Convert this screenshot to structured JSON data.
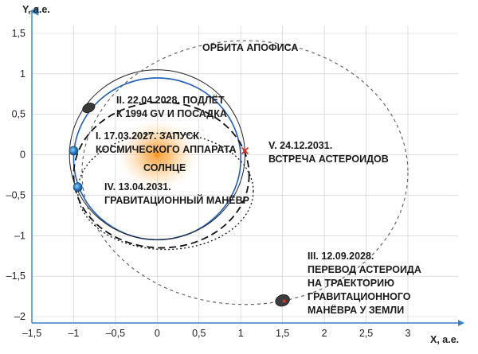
{
  "axes": {
    "x_label": "X, а.е.",
    "y_label": "Y, а.е.",
    "x_ticks": [
      "–1,5",
      "–1",
      "–0,5",
      "0",
      "0,5",
      "1",
      "1,5",
      "2",
      "2,5",
      "3"
    ],
    "y_ticks": [
      "1,5",
      "1",
      "0,5",
      "0",
      "–0,5",
      "–1",
      "–1,5",
      "–2"
    ]
  },
  "labels": {
    "apophis_orbit": "ОРБИТА АПОФИСА",
    "flyby": [
      "II. 22.04.2028. ПОДЛЁТ",
      "К 1994 GV И ПОСАДКА"
    ],
    "launch": [
      "I. 17.03.2027. ЗАПУСК",
      "КОСМИЧЕСКОГО АППАРАТА"
    ],
    "sun": "СОЛНЦЕ",
    "maneuver": [
      "IV. 13.04.2031.",
      "ГРАВИТАЦИОННЫЙ МАНЁВР"
    ],
    "meeting": [
      "V. 24.12.2031.",
      "ВСТРЕЧА АСТЕРОИДОВ"
    ],
    "transfer": [
      "III. 12.09.2028.",
      "ПЕРЕВОД АСТЕРОИДА",
      "НА ТРАЕКТОРИЮ",
      "ГРАВИТАЦИОННОГО",
      "МАНЁВРА У ЗЕМЛИ"
    ]
  },
  "colors": {
    "earth_orbit": "#1f5fb5",
    "axis": "#3a7fc0",
    "grid": "#c9c9c9",
    "sun": "#f59a2a",
    "meeting_marker": "#e03020"
  },
  "chart_data": {
    "type": "orbit-diagram",
    "xlim": [
      -1.5,
      3
    ],
    "ylim": [
      -2,
      1.5
    ],
    "x_tick_values": [
      -1.5,
      -1,
      -0.5,
      0,
      0.5,
      1,
      1.5,
      2,
      2.5,
      3
    ],
    "y_tick_values": [
      1.5,
      1,
      0.5,
      0,
      -0.5,
      -1,
      -1.5,
      -2
    ],
    "orbits": [
      {
        "id": "earth",
        "style": "solid-blue",
        "center": [
          0,
          -0.05
        ],
        "rx": 1.0,
        "ry": 1.0
      },
      {
        "id": "spacecraft-thin",
        "style": "solid-black",
        "center": [
          0,
          0.0
        ],
        "rx": 1.05,
        "ry": 1.05
      },
      {
        "id": "dashed-transfer",
        "style": "dashed",
        "center": [
          0.05,
          -0.25
        ],
        "rx": 1.05,
        "ry": 0.9
      },
      {
        "id": "dotted-asteroid",
        "style": "dotted",
        "center": [
          0.1,
          -0.45
        ],
        "rx": 1.05,
        "ry": 0.72
      },
      {
        "id": "apophis",
        "style": "dashed-grey",
        "center": [
          1.05,
          -0.22
        ],
        "rx": 1.95,
        "ry": 1.63
      }
    ],
    "points": [
      {
        "id": "sun",
        "x": 0,
        "y": 0
      },
      {
        "id": "launch",
        "x": -1.0,
        "y": 0.05
      },
      {
        "id": "flyby",
        "x": -0.82,
        "y": 0.58
      },
      {
        "id": "maneuver",
        "x": -0.95,
        "y": -0.4
      },
      {
        "id": "meeting",
        "x": 1.05,
        "y": 0.05
      },
      {
        "id": "transfer",
        "x": 1.5,
        "y": -1.8
      }
    ]
  }
}
